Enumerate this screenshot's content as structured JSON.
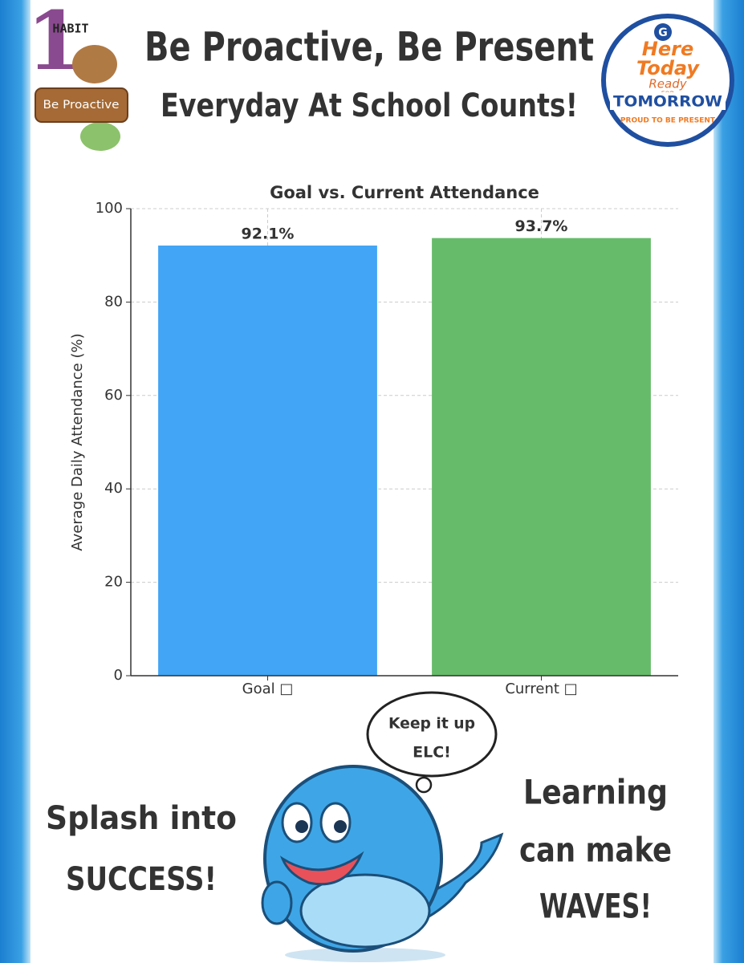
{
  "header": {
    "title": "Be Proactive, Be Present",
    "subtitle": "Everyday At School Counts!"
  },
  "habit_badge": {
    "number": "1",
    "label": "HABIT",
    "sign": "Be Proactive"
  },
  "logo": {
    "letter": "G",
    "line1": "Here",
    "line2": "Today",
    "line3": "Ready",
    "line4": "FOR",
    "line5": "TOMORROW",
    "line6": "PROUD TO BE PRESENT"
  },
  "chart_data": {
    "type": "bar",
    "title": "Goal vs. Current Attendance",
    "y_label": "Average Daily Attendance (%)",
    "categories": [
      "Goal □",
      "Current □"
    ],
    "values": [
      92.1,
      93.7
    ],
    "value_labels": [
      "92.1%",
      "93.7%"
    ],
    "colors": [
      "#42a5f5",
      "#66bb6a"
    ],
    "ylim": [
      0,
      100
    ],
    "yticks": [
      0,
      20,
      40,
      60,
      80,
      100
    ],
    "grid": true
  },
  "footer": {
    "left": [
      "Splash into",
      "SUCCESS!"
    ],
    "right": [
      "Learning",
      "can make",
      "WAVES!"
    ],
    "bubble": [
      "Keep it up",
      "ELC!"
    ]
  }
}
